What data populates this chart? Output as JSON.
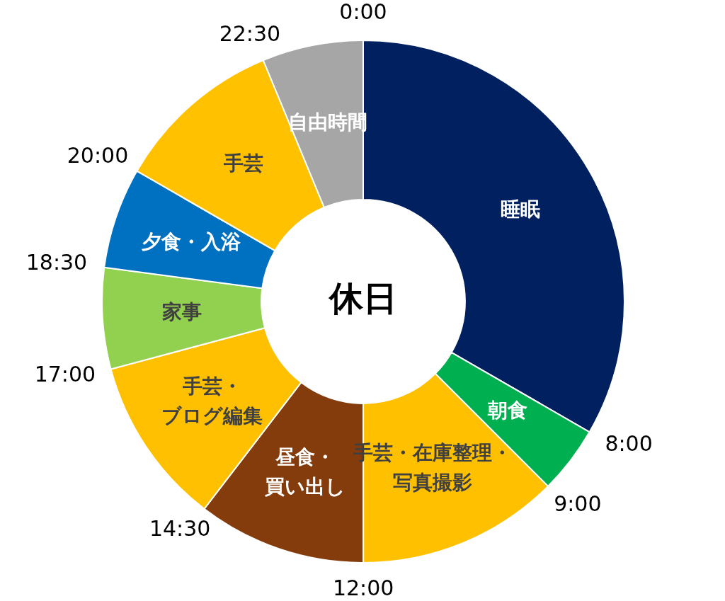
{
  "chart_data": {
    "type": "donut",
    "title": "休日",
    "categories": [
      "睡眠",
      "朝食",
      "手芸・在庫整理・写真撮影",
      "昼食・買い出し",
      "手芸・ブログ編集",
      "家事",
      "夕食・入浴",
      "手芸",
      "自由時間"
    ],
    "values": [
      33.33,
      4.17,
      12.5,
      10.42,
      10.42,
      6.25,
      6.25,
      10.42,
      6.25
    ],
    "colors": [
      "#002060",
      "#00b050",
      "#ffc000",
      "#843c0c",
      "#fec000",
      "#92d050",
      "#0070c0",
      "#ffc100",
      "#a6a6a6"
    ],
    "annotations": [
      "0:00",
      "8:00",
      "9:00",
      "12:00",
      "14:30",
      "17:00",
      "18:30",
      "20:00",
      "22:30"
    ],
    "legend": false
  }
}
